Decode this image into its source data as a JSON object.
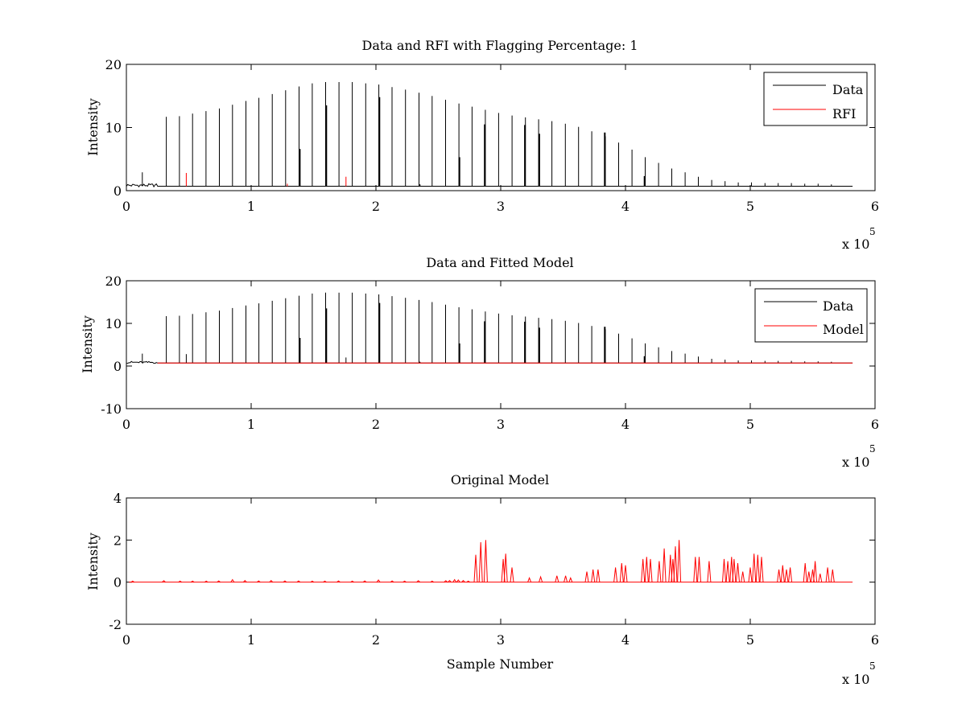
{
  "colors": {
    "data": "#000000",
    "rfi": "#ff0000",
    "model": "#ff0000",
    "axes": "#000000",
    "background": "#ffffff"
  },
  "chart_data": [
    {
      "type": "line",
      "title": "Data and RFI with Flagging Percentage: 1",
      "xlabel": "",
      "ylabel": "Intensity",
      "xlim": [
        0,
        600000
      ],
      "ylim": [
        0,
        20
      ],
      "x_ticks": [
        0,
        1,
        2,
        3,
        4,
        5,
        6
      ],
      "y_ticks": [
        0,
        10,
        20
      ],
      "x_multiplier": {
        "base": "x 10",
        "exp": "5"
      },
      "legend": {
        "position": "top-right",
        "entries": [
          "Data",
          "RFI"
        ]
      },
      "grid": false,
      "baseline": 0.7,
      "x_end": 582000,
      "series": [
        {
          "name": "Data",
          "color": "#000000",
          "peaks_x": [
            12800,
            32000,
            42500,
            53000,
            63800,
            74500,
            85000,
            95800,
            106200,
            116900,
            127600,
            138400,
            149000,
            159700,
            170400,
            181000,
            191800,
            202300,
            212900,
            223700,
            234500,
            245000,
            255800,
            266500,
            277000,
            287700,
            298300,
            309100,
            319800,
            330400,
            341000,
            351800,
            362400,
            373000,
            383900,
            394500,
            405200,
            415800,
            426500,
            437100,
            447800,
            458400,
            469100,
            479800,
            490400,
            501000,
            511800,
            522400,
            533000,
            543700,
            554400,
            565000
          ],
          "peaks_y": [
            2.9,
            11.7,
            11.8,
            12.2,
            12.6,
            13.0,
            13.6,
            14.2,
            14.7,
            15.3,
            15.9,
            16.5,
            17.0,
            17.2,
            17.2,
            17.2,
            17.0,
            16.8,
            16.4,
            16.0,
            15.5,
            15.0,
            14.4,
            13.8,
            13.3,
            12.8,
            12.3,
            11.9,
            11.6,
            11.3,
            11.0,
            10.6,
            10.1,
            9.4,
            8.6,
            7.6,
            6.5,
            5.3,
            4.4,
            3.5,
            2.9,
            2.2,
            1.7,
            1.5,
            1.3,
            1.3,
            1.2,
            1.2,
            1.2,
            1.1,
            1.1,
            1.0
          ],
          "inner_x": [
            139000,
            160200,
            202800,
            235000,
            266900,
            287200,
            319400,
            330900,
            383400,
            415300
          ],
          "inner_y": [
            6.6,
            13.5,
            14.8,
            1.0,
            5.3,
            10.5,
            10.4,
            9.0,
            9.2,
            2.3
          ]
        },
        {
          "name": "RFI",
          "color": "#ff0000",
          "peaks_x": [
            48000,
            129000,
            176000
          ],
          "peaks_y": [
            2.8,
            1.1,
            2.2
          ]
        }
      ]
    },
    {
      "type": "line",
      "title": "Data and Fitted Model",
      "xlabel": "",
      "ylabel": "Intensity",
      "xlim": [
        0,
        600000
      ],
      "ylim": [
        -10,
        20
      ],
      "x_ticks": [
        0,
        1,
        2,
        3,
        4,
        5,
        6
      ],
      "y_ticks": [
        -10,
        0,
        10,
        20
      ],
      "x_multiplier": {
        "base": "x 10",
        "exp": "5"
      },
      "legend": {
        "position": "top-right",
        "entries": [
          "Data",
          "Model"
        ]
      },
      "grid": false,
      "baseline": 0.7,
      "x_end": 582000,
      "series": [
        {
          "name": "Data",
          "color": "#000000",
          "same_as_panel": 0,
          "extra_peaks_x": [
            48000,
            176000
          ],
          "extra_peaks_y": [
            2.8,
            2.0
          ]
        },
        {
          "name": "Model",
          "color": "#ff0000",
          "x_start": 25000,
          "x_end": 582000,
          "value": 0.7
        }
      ]
    },
    {
      "type": "line",
      "title": "Original Model",
      "xlabel": "Sample Number",
      "ylabel": "Intensity",
      "xlim": [
        0,
        600000
      ],
      "ylim": [
        -2,
        4
      ],
      "x_ticks": [
        0,
        1,
        2,
        3,
        4,
        5,
        6
      ],
      "y_ticks": [
        -2,
        0,
        2,
        4
      ],
      "x_multiplier": {
        "base": "x 10",
        "exp": "5"
      },
      "grid": false,
      "baseline": 0.0,
      "x_end": 582000,
      "series": [
        {
          "name": "Model",
          "color": "#ff0000",
          "peaks_x": [
            5000,
            30000,
            43000,
            53000,
            64000,
            74000,
            85000,
            95000,
            106000,
            116000,
            127000,
            138000,
            149000,
            159000,
            170000,
            181000,
            191000,
            202000,
            213000,
            223000,
            234000,
            245000,
            256000,
            259000,
            263000,
            266000,
            270000,
            274000,
            280000,
            284000,
            288000,
            302000,
            304000,
            309000,
            323000,
            332000,
            345000,
            352000,
            356000,
            369000,
            374000,
            378000,
            392000,
            397000,
            400000,
            414000,
            417000,
            420000,
            427000,
            431000,
            436000,
            438000,
            440000,
            443000,
            456000,
            459000,
            467000,
            479000,
            482000,
            485000,
            487000,
            490000,
            494000,
            500000,
            503000,
            506000,
            509000,
            523000,
            526000,
            529000,
            532000,
            544000,
            547000,
            550000,
            552000,
            556000,
            562000,
            566000
          ],
          "peaks_y": [
            0.05,
            0.07,
            0.05,
            0.05,
            0.05,
            0.06,
            0.12,
            0.08,
            0.06,
            0.08,
            0.06,
            0.06,
            0.05,
            0.05,
            0.06,
            0.05,
            0.06,
            0.1,
            0.06,
            0.05,
            0.07,
            0.05,
            0.07,
            0.08,
            0.12,
            0.1,
            0.08,
            0.05,
            1.3,
            1.9,
            2.0,
            1.1,
            1.35,
            0.7,
            0.2,
            0.25,
            0.3,
            0.3,
            0.2,
            0.5,
            0.6,
            0.6,
            0.7,
            0.9,
            0.8,
            1.1,
            1.2,
            1.1,
            1.0,
            1.6,
            1.3,
            1.1,
            1.7,
            2.0,
            1.2,
            1.2,
            1.0,
            1.1,
            1.0,
            1.2,
            1.1,
            0.9,
            0.5,
            0.7,
            1.35,
            1.3,
            1.2,
            0.6,
            0.8,
            0.6,
            0.7,
            0.9,
            0.5,
            0.6,
            1.0,
            0.4,
            0.7,
            0.6
          ]
        }
      ]
    }
  ]
}
